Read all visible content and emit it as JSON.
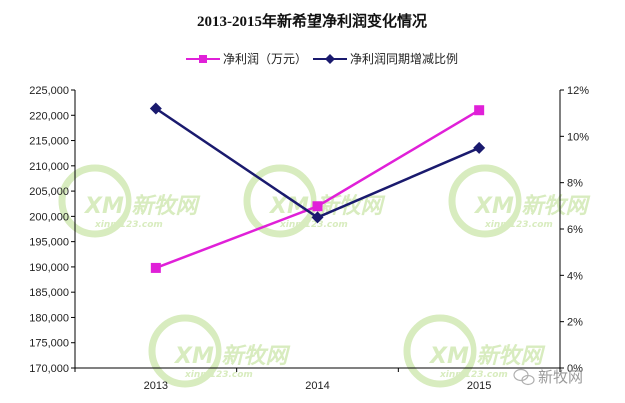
{
  "chart_data": {
    "type": "line",
    "title": "2013-2015年新希望净利润变化情况",
    "categories": [
      "2013",
      "2014",
      "2015"
    ],
    "series": [
      {
        "name": "净利润（万元）",
        "axis": "left",
        "color": "#e020d8",
        "marker": "square",
        "values": [
          189800,
          202000,
          221000
        ]
      },
      {
        "name": "净利润同期增减比例",
        "axis": "right",
        "color": "#1a1a6e",
        "marker": "diamond",
        "values": [
          11.2,
          6.5,
          9.5
        ]
      }
    ],
    "y_left": {
      "min": 170000,
      "max": 225000,
      "step": 5000,
      "tick_labels": [
        "170,000",
        "175,000",
        "180,000",
        "185,000",
        "190,000",
        "195,000",
        "200,000",
        "205,000",
        "210,000",
        "215,000",
        "220,000",
        "225,000"
      ]
    },
    "y_right": {
      "min": 0,
      "max": 12,
      "step": 2,
      "tick_labels": [
        "0%",
        "2%",
        "4%",
        "6%",
        "8%",
        "10%",
        "12%"
      ]
    },
    "xlabel": "",
    "ylabel": "",
    "grid": false,
    "legend_position": "top-center"
  },
  "watermark": {
    "logo_text": "XM 新牧网",
    "sub_text": "xinm123.com",
    "credit_text": "新牧网",
    "color": "#b9dc8a"
  }
}
